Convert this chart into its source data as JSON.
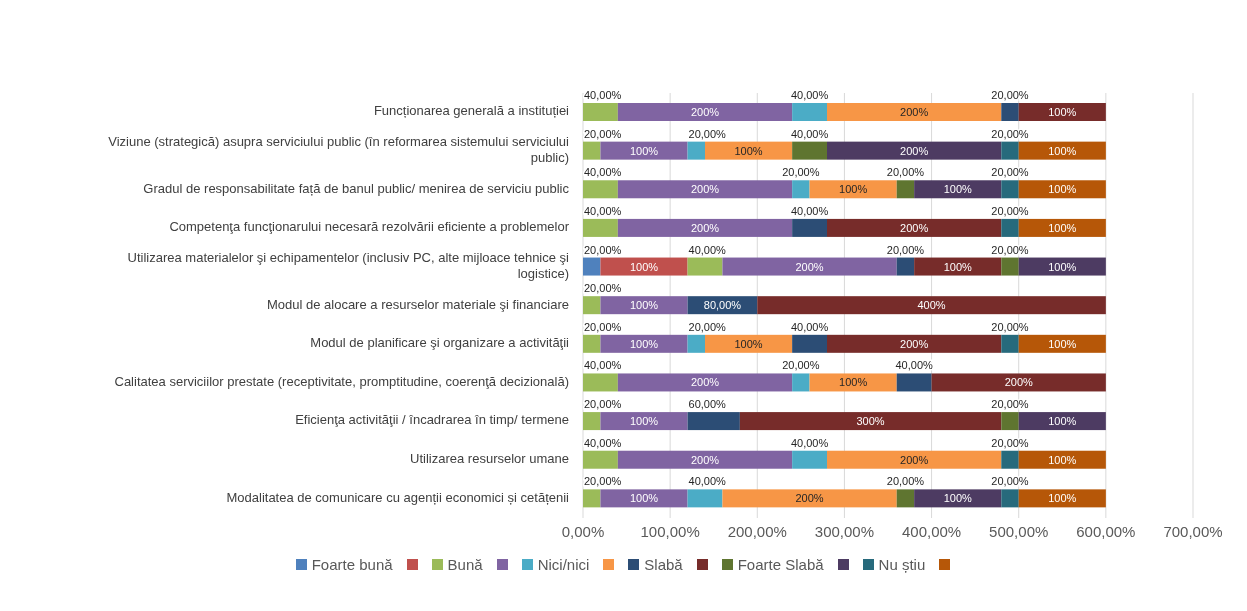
{
  "chart_data": {
    "type": "bar",
    "orientation": "horizontal",
    "stacked": true,
    "grid": "x",
    "legend": "bottom",
    "categories": [
      "Funcționarea generală a instituției",
      "Viziune (strategică) asupra serviciului public (în reformarea sistemului serviciului public)",
      "Gradul de responsabilitate față de banul public/ menirea de serviciu public",
      "Competenţa funcţionarului  necesară rezolvării eficiente a problemelor",
      "Utilizarea materialelor şi echipamentelor (inclusiv PC, alte mijloace tehnice şi logistice)",
      "Modul de alocare a resurselor materiale şi financiare",
      "Modul de planificare şi organizare a activităţii",
      "Calitatea serviciilor prestate (receptivitate, promptitudine, coerenţă decizională)",
      "Eficienţa activităţii / încadrarea în timp/ termene",
      "Utilizarea resurselor umane",
      "Modalitatea de comunicare cu agenții economici și cetățenii"
    ],
    "xlim": [
      0,
      700
    ],
    "xticks": [
      {
        "value": 0,
        "label": "0,00%"
      },
      {
        "value": 100,
        "label": "100,00%"
      },
      {
        "value": 200,
        "label": "200,00%"
      },
      {
        "value": 300,
        "label": "300,00%"
      },
      {
        "value": 400,
        "label": "400,00%"
      },
      {
        "value": 500,
        "label": "500,00%"
      },
      {
        "value": 600,
        "label": "600,00%"
      },
      {
        "value": 700,
        "label": "700,00%"
      }
    ],
    "series": [
      {
        "name": "Foarte bună",
        "color": "#4f81bd",
        "values": [
          0,
          0,
          0,
          0,
          20,
          0,
          0,
          0,
          0,
          0,
          0
        ],
        "value_labels": [
          null,
          null,
          null,
          null,
          "20,00%",
          null,
          null,
          null,
          null,
          null,
          null
        ]
      },
      {
        "color": "#c0504d",
        "values": [
          0,
          0,
          0,
          0,
          100,
          0,
          0,
          0,
          0,
          0,
          0
        ],
        "value_labels": [
          null,
          null,
          null,
          null,
          "100%",
          null,
          null,
          null,
          null,
          null,
          null
        ]
      },
      {
        "name": "Bună",
        "color": "#9bbb59",
        "values": [
          40,
          20,
          40,
          40,
          40,
          20,
          20,
          40,
          20,
          40,
          20
        ],
        "value_labels": [
          "40,00%",
          "20,00%",
          "40,00%",
          "40,00%",
          "40,00%",
          "20,00%",
          "20,00%",
          "40,00%",
          "20,00%",
          "40,00%",
          "20,00%"
        ]
      },
      {
        "color": "#8064a2",
        "values": [
          200,
          100,
          200,
          200,
          200,
          100,
          100,
          200,
          100,
          200,
          100
        ],
        "value_labels": [
          "200%",
          "100%",
          "200%",
          "200%",
          "200%",
          "100%",
          "100%",
          "200%",
          "100%",
          "200%",
          "100%"
        ]
      },
      {
        "name": "Nici/nici",
        "color": "#4bacc6",
        "values": [
          40,
          20,
          20,
          0,
          0,
          0,
          20,
          20,
          0,
          40,
          40
        ],
        "value_labels": [
          "40,00%",
          "20,00%",
          "20,00%",
          null,
          null,
          null,
          "20,00%",
          "20,00%",
          null,
          "40,00%",
          "40,00%"
        ]
      },
      {
        "color": "#f79646",
        "values": [
          200,
          100,
          100,
          0,
          0,
          0,
          100,
          100,
          0,
          200,
          200
        ],
        "value_labels": [
          "200%",
          "100%",
          "100%",
          null,
          null,
          null,
          "100%",
          "100%",
          null,
          "200%",
          "200%"
        ]
      },
      {
        "name": "Slabă",
        "color": "#2c4d75",
        "values": [
          20,
          0,
          0,
          40,
          20,
          80,
          40,
          40,
          60,
          0,
          0
        ],
        "value_labels": [
          "20,00%",
          null,
          null,
          "40,00%",
          "20,00%",
          "80,00%",
          "40,00%",
          "40,00%",
          "60,00%",
          null,
          null
        ]
      },
      {
        "color": "#772c2a",
        "values": [
          100,
          0,
          0,
          200,
          100,
          400,
          200,
          200,
          300,
          0,
          0
        ],
        "value_labels": [
          "100%",
          null,
          null,
          "200%",
          "100%",
          "400%",
          "200%",
          "200%",
          "300%",
          null,
          null
        ]
      },
      {
        "name": "Foarte Slabă",
        "color": "#5f7530",
        "values": [
          0,
          40,
          20,
          0,
          20,
          0,
          0,
          0,
          20,
          0,
          20
        ],
        "value_labels": [
          null,
          "40,00%",
          "20,00%",
          null,
          "20,00%",
          null,
          null,
          null,
          "20,00%",
          null,
          "20,00%"
        ]
      },
      {
        "color": "#4d3b62",
        "values": [
          0,
          200,
          100,
          0,
          100,
          0,
          0,
          0,
          100,
          0,
          100
        ],
        "value_labels": [
          null,
          "200%",
          "100%",
          null,
          "100%",
          null,
          null,
          null,
          "100%",
          null,
          "100%"
        ]
      },
      {
        "name": "Nu știu",
        "color": "#276a7c",
        "values": [
          0,
          20,
          20,
          20,
          0,
          0,
          20,
          0,
          0,
          20,
          20
        ],
        "value_labels": [
          null,
          "20,00%",
          "20,00%",
          "20,00%",
          null,
          null,
          "20,00%",
          null,
          null,
          "20,00%",
          "20,00%"
        ]
      },
      {
        "color": "#b65708",
        "values": [
          0,
          100,
          100,
          100,
          0,
          0,
          100,
          0,
          0,
          100,
          100
        ],
        "value_labels": [
          null,
          "100%",
          "100%",
          "100%",
          null,
          null,
          "100%",
          null,
          null,
          "100%",
          "100%"
        ]
      }
    ]
  }
}
